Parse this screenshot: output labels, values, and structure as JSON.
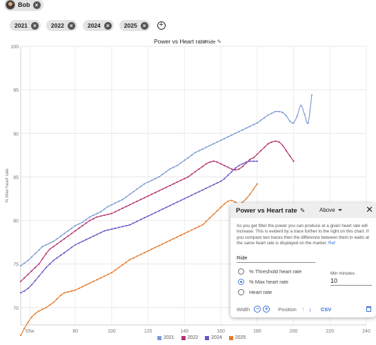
{
  "user": {
    "name": "Bob"
  },
  "year_filters": [
    "2021",
    "2022",
    "2024",
    "2025"
  ],
  "chart_data": {
    "type": "line",
    "title": "Power vs Heart rate",
    "subtitle": "Ride",
    "ylabel": "% Max heart rate",
    "xlabel": "",
    "xlim": [
      50,
      240
    ],
    "ylim": [
      68,
      100
    ],
    "x_ticks": [
      "55w",
      "80",
      "100",
      "120",
      "140",
      "160",
      "180",
      "200",
      "220",
      "240"
    ],
    "x_tick_values": [
      55,
      80,
      100,
      120,
      140,
      160,
      180,
      200,
      220,
      240
    ],
    "y_ticks": [
      70,
      75,
      80,
      85,
      90,
      95,
      100
    ],
    "grid": true,
    "legend_position": "bottom",
    "series": [
      {
        "name": "2021",
        "color": "#7c9ad6",
        "x": [
          50,
          52,
          54,
          56,
          58,
          60,
          62,
          64,
          66,
          68,
          70,
          72,
          74,
          76,
          78,
          80,
          82,
          84,
          86,
          88,
          90,
          92,
          94,
          96,
          98,
          100,
          102,
          104,
          106,
          108,
          110,
          112,
          114,
          116,
          118,
          120,
          122,
          124,
          126,
          128,
          130,
          132,
          134,
          136,
          138,
          140,
          142,
          144,
          146,
          148,
          150,
          152,
          154,
          156,
          158,
          160,
          162,
          164,
          166,
          168,
          170,
          172,
          174,
          176,
          178,
          180,
          182,
          184,
          186,
          188,
          190,
          192,
          194,
          196,
          198,
          200,
          202,
          204,
          206,
          208,
          210
        ],
        "y": [
          74.8,
          75.1,
          75.4,
          75.8,
          76.2,
          76.6,
          77.0,
          77.2,
          77.4,
          77.6,
          77.9,
          78.2,
          78.5,
          78.8,
          79.1,
          79.4,
          79.6,
          79.8,
          80.1,
          80.4,
          80.6,
          80.8,
          81.0,
          81.3,
          81.6,
          81.8,
          82.0,
          82.2,
          82.4,
          82.7,
          83.0,
          83.3,
          83.6,
          83.9,
          84.2,
          84.4,
          84.6,
          84.8,
          85.0,
          85.3,
          85.6,
          85.9,
          86.1,
          86.3,
          86.6,
          86.9,
          87.2,
          87.5,
          87.8,
          88.0,
          88.2,
          88.4,
          88.6,
          88.8,
          89.0,
          89.2,
          89.4,
          89.6,
          89.8,
          90.0,
          90.2,
          90.4,
          90.6,
          90.8,
          91.0,
          91.2,
          91.5,
          91.8,
          92.1,
          92.3,
          92.5,
          92.5,
          92.4,
          92.0,
          91.4,
          91.2,
          92.0,
          93.2,
          92.2,
          91.2,
          94.4
        ]
      },
      {
        "name": "2022",
        "color": "#b5316f",
        "x": [
          50,
          52,
          54,
          56,
          58,
          60,
          62,
          64,
          66,
          68,
          70,
          72,
          74,
          76,
          78,
          80,
          82,
          84,
          86,
          88,
          90,
          92,
          94,
          96,
          98,
          100,
          102,
          104,
          106,
          108,
          110,
          112,
          114,
          116,
          118,
          120,
          122,
          124,
          126,
          128,
          130,
          132,
          134,
          136,
          138,
          140,
          142,
          144,
          146,
          148,
          150,
          152,
          154,
          156,
          158,
          160,
          162,
          164,
          166,
          168,
          170,
          172,
          174,
          176,
          178,
          180,
          182,
          184,
          186,
          188,
          190,
          192,
          194,
          196,
          198,
          200
        ],
        "y": [
          73.0,
          73.4,
          73.8,
          74.2,
          74.6,
          75.0,
          75.6,
          76.2,
          76.7,
          77.0,
          77.3,
          77.6,
          77.9,
          78.2,
          78.5,
          78.8,
          79.1,
          79.4,
          79.7,
          80.0,
          80.2,
          80.4,
          80.5,
          80.6,
          80.7,
          80.8,
          81.0,
          81.2,
          81.4,
          81.6,
          81.8,
          82.0,
          82.2,
          82.4,
          82.6,
          82.8,
          83.0,
          83.2,
          83.4,
          83.6,
          83.8,
          84.0,
          84.2,
          84.4,
          84.6,
          84.8,
          85.0,
          85.3,
          85.6,
          85.9,
          86.2,
          86.5,
          86.7,
          86.8,
          86.7,
          86.5,
          86.3,
          86.1,
          85.9,
          85.8,
          85.9,
          86.2,
          86.6,
          87.0,
          87.2,
          87.6,
          88.0,
          88.4,
          88.8,
          89.0,
          89.1,
          89.0,
          88.6,
          88.0,
          87.4,
          86.8
        ]
      },
      {
        "name": "2024",
        "color": "#6a55c9",
        "x": [
          50,
          52,
          54,
          56,
          58,
          60,
          62,
          64,
          66,
          68,
          70,
          72,
          74,
          76,
          78,
          80,
          82,
          84,
          86,
          88,
          90,
          92,
          94,
          96,
          98,
          100,
          102,
          104,
          106,
          108,
          110,
          112,
          114,
          116,
          118,
          120,
          122,
          124,
          126,
          128,
          130,
          132,
          134,
          136,
          138,
          140,
          142,
          144,
          146,
          148,
          150,
          152,
          154,
          156,
          158,
          160,
          162,
          164,
          166,
          168,
          170,
          172,
          174,
          176,
          178,
          180
        ],
        "y": [
          71.7,
          71.9,
          72.2,
          72.6,
          73.1,
          73.6,
          74.1,
          74.6,
          75.0,
          75.4,
          75.7,
          76.0,
          76.3,
          76.6,
          76.9,
          77.2,
          77.4,
          77.6,
          77.8,
          78.0,
          78.2,
          78.4,
          78.6,
          78.8,
          78.9,
          79.0,
          79.1,
          79.2,
          79.3,
          79.4,
          79.5,
          79.7,
          79.9,
          80.1,
          80.3,
          80.5,
          80.7,
          80.9,
          81.1,
          81.3,
          81.5,
          81.7,
          81.9,
          82.1,
          82.3,
          82.5,
          82.7,
          82.9,
          83.1,
          83.3,
          83.5,
          83.7,
          83.9,
          84.1,
          84.3,
          84.5,
          84.8,
          85.2,
          85.6,
          86.0,
          86.3,
          86.5,
          86.7,
          86.8,
          86.8,
          86.8
        ]
      },
      {
        "name": "2025",
        "color": "#e37a2a",
        "x": [
          50,
          52,
          54,
          56,
          58,
          60,
          62,
          64,
          66,
          68,
          70,
          72,
          74,
          76,
          78,
          80,
          82,
          84,
          86,
          88,
          90,
          92,
          94,
          96,
          98,
          100,
          102,
          104,
          106,
          108,
          110,
          112,
          114,
          116,
          118,
          120,
          122,
          124,
          126,
          128,
          130,
          132,
          134,
          136,
          138,
          140,
          142,
          144,
          146,
          148,
          150,
          152,
          154,
          156,
          158,
          160,
          162,
          164,
          166,
          168,
          170,
          172,
          174,
          176,
          178,
          180
        ],
        "y": [
          66.8,
          67.6,
          68.3,
          68.9,
          69.3,
          69.6,
          69.8,
          70.0,
          70.3,
          70.6,
          71.0,
          71.4,
          71.7,
          71.8,
          71.9,
          72.0,
          72.2,
          72.4,
          72.6,
          72.8,
          73.0,
          73.2,
          73.4,
          73.6,
          73.8,
          74.0,
          74.3,
          74.6,
          74.9,
          75.2,
          75.5,
          75.7,
          75.9,
          76.1,
          76.3,
          76.5,
          76.7,
          76.9,
          77.1,
          77.3,
          77.5,
          77.7,
          77.9,
          78.1,
          78.3,
          78.5,
          78.7,
          78.9,
          79.1,
          79.3,
          79.5,
          79.9,
          80.3,
          80.7,
          81.1,
          81.5,
          81.9,
          82.2,
          82.3,
          82.1,
          81.9,
          82.1,
          82.5,
          83.0,
          83.6,
          84.2
        ]
      }
    ]
  },
  "panel": {
    "title": "Power vs Heart rate",
    "mode_select": "Above",
    "description": "As you get fitter the power you can produce at a given heart rate will increase. This is evident by a trace further to the right on this chart. If you compare two traces then the difference between them in watts at the same heart rate is displayed on the marker.",
    "ref_label": "Ref",
    "activity_type": "Ride",
    "options": [
      "% Threshold heart rate",
      "% Max heart rate",
      "Heart rate"
    ],
    "selected_option_index": 1,
    "min_minutes_label": "Min minutes",
    "min_minutes_value": "10",
    "width_label": "Width",
    "position_label": "Position",
    "csv_label": "CSV"
  }
}
